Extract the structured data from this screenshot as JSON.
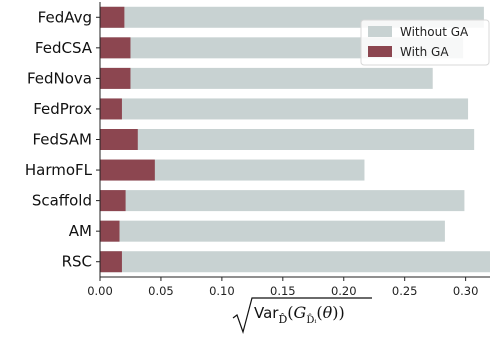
{
  "chart_data": {
    "type": "bar",
    "orientation": "horizontal",
    "stacking": "overlay",
    "categories": [
      "FedAvg",
      "FedCSA",
      "FedNova",
      "FedProx",
      "FedSAM",
      "HarmoFL",
      "Scaffold",
      "AM",
      "RSC"
    ],
    "series": [
      {
        "name": "Without GA",
        "color": "#c8d2d2",
        "values": [
          0.315,
          0.298,
          0.273,
          0.302,
          0.307,
          0.217,
          0.299,
          0.283,
          0.32
        ]
      },
      {
        "name": "With GA",
        "color": "#8c4650",
        "values": [
          0.02,
          0.025,
          0.025,
          0.018,
          0.031,
          0.045,
          0.021,
          0.016,
          0.018
        ]
      }
    ],
    "xlim": [
      0.0,
      0.32
    ],
    "xticks": [
      0.0,
      0.05,
      0.1,
      0.15,
      0.2,
      0.25,
      0.3
    ],
    "xtick_labels": [
      "0.00",
      "0.05",
      "0.10",
      "0.15",
      "0.20",
      "0.25",
      "0.30"
    ],
    "xlabel": "√Var_D̂(G_D̂ᵢ(θ))",
    "title": "",
    "ylabel": "",
    "grid": false,
    "legend_position": "top-right"
  }
}
